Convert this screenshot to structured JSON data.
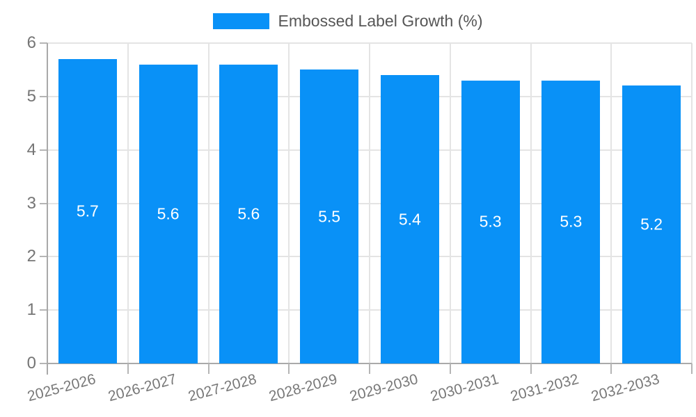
{
  "chart_data": {
    "type": "bar",
    "title": "",
    "legend": {
      "label": "Embossed Label Growth (%)",
      "position": "top-center"
    },
    "categories": [
      "2025-2026",
      "2026-2027",
      "2027-2028",
      "2028-2029",
      "2029-2030",
      "2030-2031",
      "2031-2032",
      "2032-2033"
    ],
    "values": [
      5.7,
      5.6,
      5.6,
      5.5,
      5.4,
      5.3,
      5.3,
      5.2
    ],
    "value_labels": [
      "5.7",
      "5.6",
      "5.6",
      "5.5",
      "5.4",
      "5.3",
      "5.3",
      "5.2"
    ],
    "xlabel": "",
    "ylabel": "",
    "ylim": [
      0,
      6
    ],
    "yticks": [
      0,
      1,
      2,
      3,
      4,
      5,
      6
    ],
    "grid": true,
    "colors": {
      "bar": "#0991f7",
      "data_label": "#ffffff",
      "grid_line": "#e4e4e4",
      "axis_line": "#a9a9a9",
      "tick_mark": "#b5b5b5",
      "tick_label": "#757575",
      "legend_text": "#565656"
    }
  }
}
